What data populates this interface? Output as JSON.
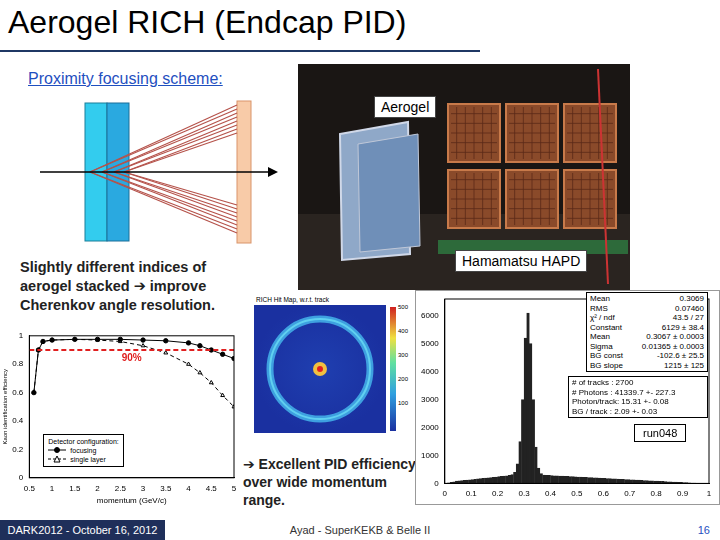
{
  "slide": {
    "title": "Aerogel RICH (Endcap PID)",
    "subtitle": "Proximity focusing scheme:",
    "photo_labels": [
      "Aerogel",
      "Hamamatsu HAPD"
    ],
    "description": "Slightly different indices of aerogel stacked ➔ improve Cherenkov angle resolution.",
    "conclusion": "➔ Excellent PID efficiency over wide momentum range.",
    "hit_map": {
      "title": "RICH Hit Map, w.r.t. track",
      "colorbar_ticks": [
        100,
        200,
        300,
        400,
        500
      ]
    },
    "footer": {
      "left": "DARK2012 - October 16, 2012",
      "center": "Ayad - SuperKEKB & Belle II",
      "page": "16"
    }
  },
  "chart_data": [
    {
      "type": "line",
      "x_label": "momentum (GeV/c)",
      "y_label": "Kaon identification efficiency",
      "x": [
        0.6,
        0.7,
        0.8,
        1,
        1.5,
        2,
        2.5,
        3,
        3.5,
        4,
        4.25,
        4.5,
        4.75,
        5
      ],
      "series": [
        {
          "name": "focusing",
          "color": "#000000",
          "marker": "circle",
          "line_style": "solid",
          "values": [
            0.6,
            0.9,
            0.96,
            0.97,
            0.975,
            0.975,
            0.975,
            0.97,
            0.965,
            0.95,
            0.93,
            0.9,
            0.87,
            0.84
          ]
        },
        {
          "name": "single layer",
          "color": "#000000",
          "marker": "triangle",
          "line_style": "dashed",
          "values": [
            0.6,
            0.9,
            0.96,
            0.97,
            0.975,
            0.97,
            0.96,
            0.93,
            0.88,
            0.8,
            0.74,
            0.67,
            0.58,
            0.5
          ]
        }
      ],
      "xlim": [
        0.5,
        5
      ],
      "xticks": [
        0.5,
        1,
        1.5,
        2,
        2.5,
        3,
        3.5,
        4,
        4.5,
        5
      ],
      "ylim": [
        0,
        1
      ],
      "yticks": [
        0,
        0.2,
        0.4,
        0.6,
        0.8,
        1
      ],
      "grid": false,
      "legend": "lower left",
      "legend_title": "Detector configuration:",
      "annotations": [
        {
          "value": 0.9,
          "label": "90%",
          "color": "#e02020"
        }
      ]
    },
    {
      "type": "histogram",
      "bins": [
        0,
        0.01,
        0.02,
        0.03,
        0.04,
        0.05,
        0.06,
        0.07,
        0.08,
        0.09,
        0.1,
        0.11,
        0.12,
        0.13,
        0.14,
        0.15,
        0.16,
        0.17,
        0.18,
        0.19,
        0.2,
        0.21,
        0.22,
        0.23,
        0.24,
        0.25,
        0.26,
        0.27,
        0.28,
        0.29,
        0.3,
        0.31,
        0.32,
        0.33,
        0.34,
        0.35,
        0.36,
        0.37,
        0.38,
        0.39,
        0.4,
        0.41,
        0.42,
        0.43,
        0.44,
        0.45,
        0.46,
        0.47,
        0.48,
        0.49,
        0.5,
        0.51,
        0.52,
        0.53,
        0.54,
        0.55,
        0.56,
        0.57,
        0.58,
        0.59,
        0.6,
        0.61,
        0.62,
        0.63,
        0.64,
        0.65,
        0.66,
        0.67,
        0.68,
        0.69,
        0.7,
        0.71,
        0.72,
        0.73,
        0.74,
        0.75,
        0.76,
        0.77,
        0.78,
        0.79,
        0.8,
        0.81,
        0.82,
        0.83,
        0.84,
        0.85,
        0.86,
        0.87,
        0.88,
        0.89,
        0.9,
        0.91,
        0.92,
        0.93,
        0.94,
        0.95,
        0.96,
        0.97,
        0.98,
        0.99,
        1
      ],
      "values": [
        0,
        20,
        40,
        60,
        80,
        90,
        100,
        110,
        120,
        130,
        140,
        150,
        160,
        170,
        180,
        190,
        200,
        210,
        220,
        230,
        240,
        250,
        260,
        270,
        290,
        320,
        400,
        700,
        1500,
        3000,
        5200,
        6100,
        5000,
        3000,
        1300,
        550,
        350,
        300,
        290,
        285,
        280,
        275,
        270,
        265,
        260,
        255,
        250,
        245,
        240,
        235,
        230,
        225,
        220,
        215,
        210,
        205,
        200,
        195,
        190,
        185,
        180,
        175,
        170,
        165,
        160,
        155,
        150,
        145,
        140,
        135,
        130,
        125,
        120,
        115,
        110,
        105,
        100,
        95,
        90,
        85,
        80,
        75,
        70,
        65,
        60,
        55,
        50,
        45,
        40,
        35,
        30,
        25,
        20,
        15,
        10,
        5,
        0,
        0,
        0,
        0
      ],
      "color": "#222222",
      "xlim": [
        0,
        1
      ],
      "xticks": [
        0,
        0.1,
        0.2,
        0.3,
        0.4,
        0.5,
        0.6,
        0.7,
        0.8,
        0.9,
        1
      ],
      "ylim": [
        0,
        6600
      ],
      "yticks": [
        0,
        1000,
        2000,
        3000,
        4000,
        5000,
        6000
      ],
      "grid": false,
      "stats": [
        [
          "Mean",
          "0.3069"
        ],
        [
          "RMS",
          "0.07460"
        ],
        [
          "χ² / ndf",
          "43.5 / 27"
        ],
        [
          "Constant",
          "6129 ± 38.4"
        ],
        [
          "Mean",
          "0.3067 ± 0.0003"
        ],
        [
          "Sigma",
          "0.01365 ± 0.0003"
        ],
        [
          "BG const",
          "-102.6 ± 25.5"
        ],
        [
          "BG slope",
          "1215 ± 125"
        ]
      ],
      "info": [
        "# of tracks : 2700",
        "# Photons : 41339.7 +- 227.3",
        "Photon/track: 15.31 +- 0.08",
        "BG / track : 2.09 +- 0.03"
      ],
      "label": "run048"
    }
  ]
}
